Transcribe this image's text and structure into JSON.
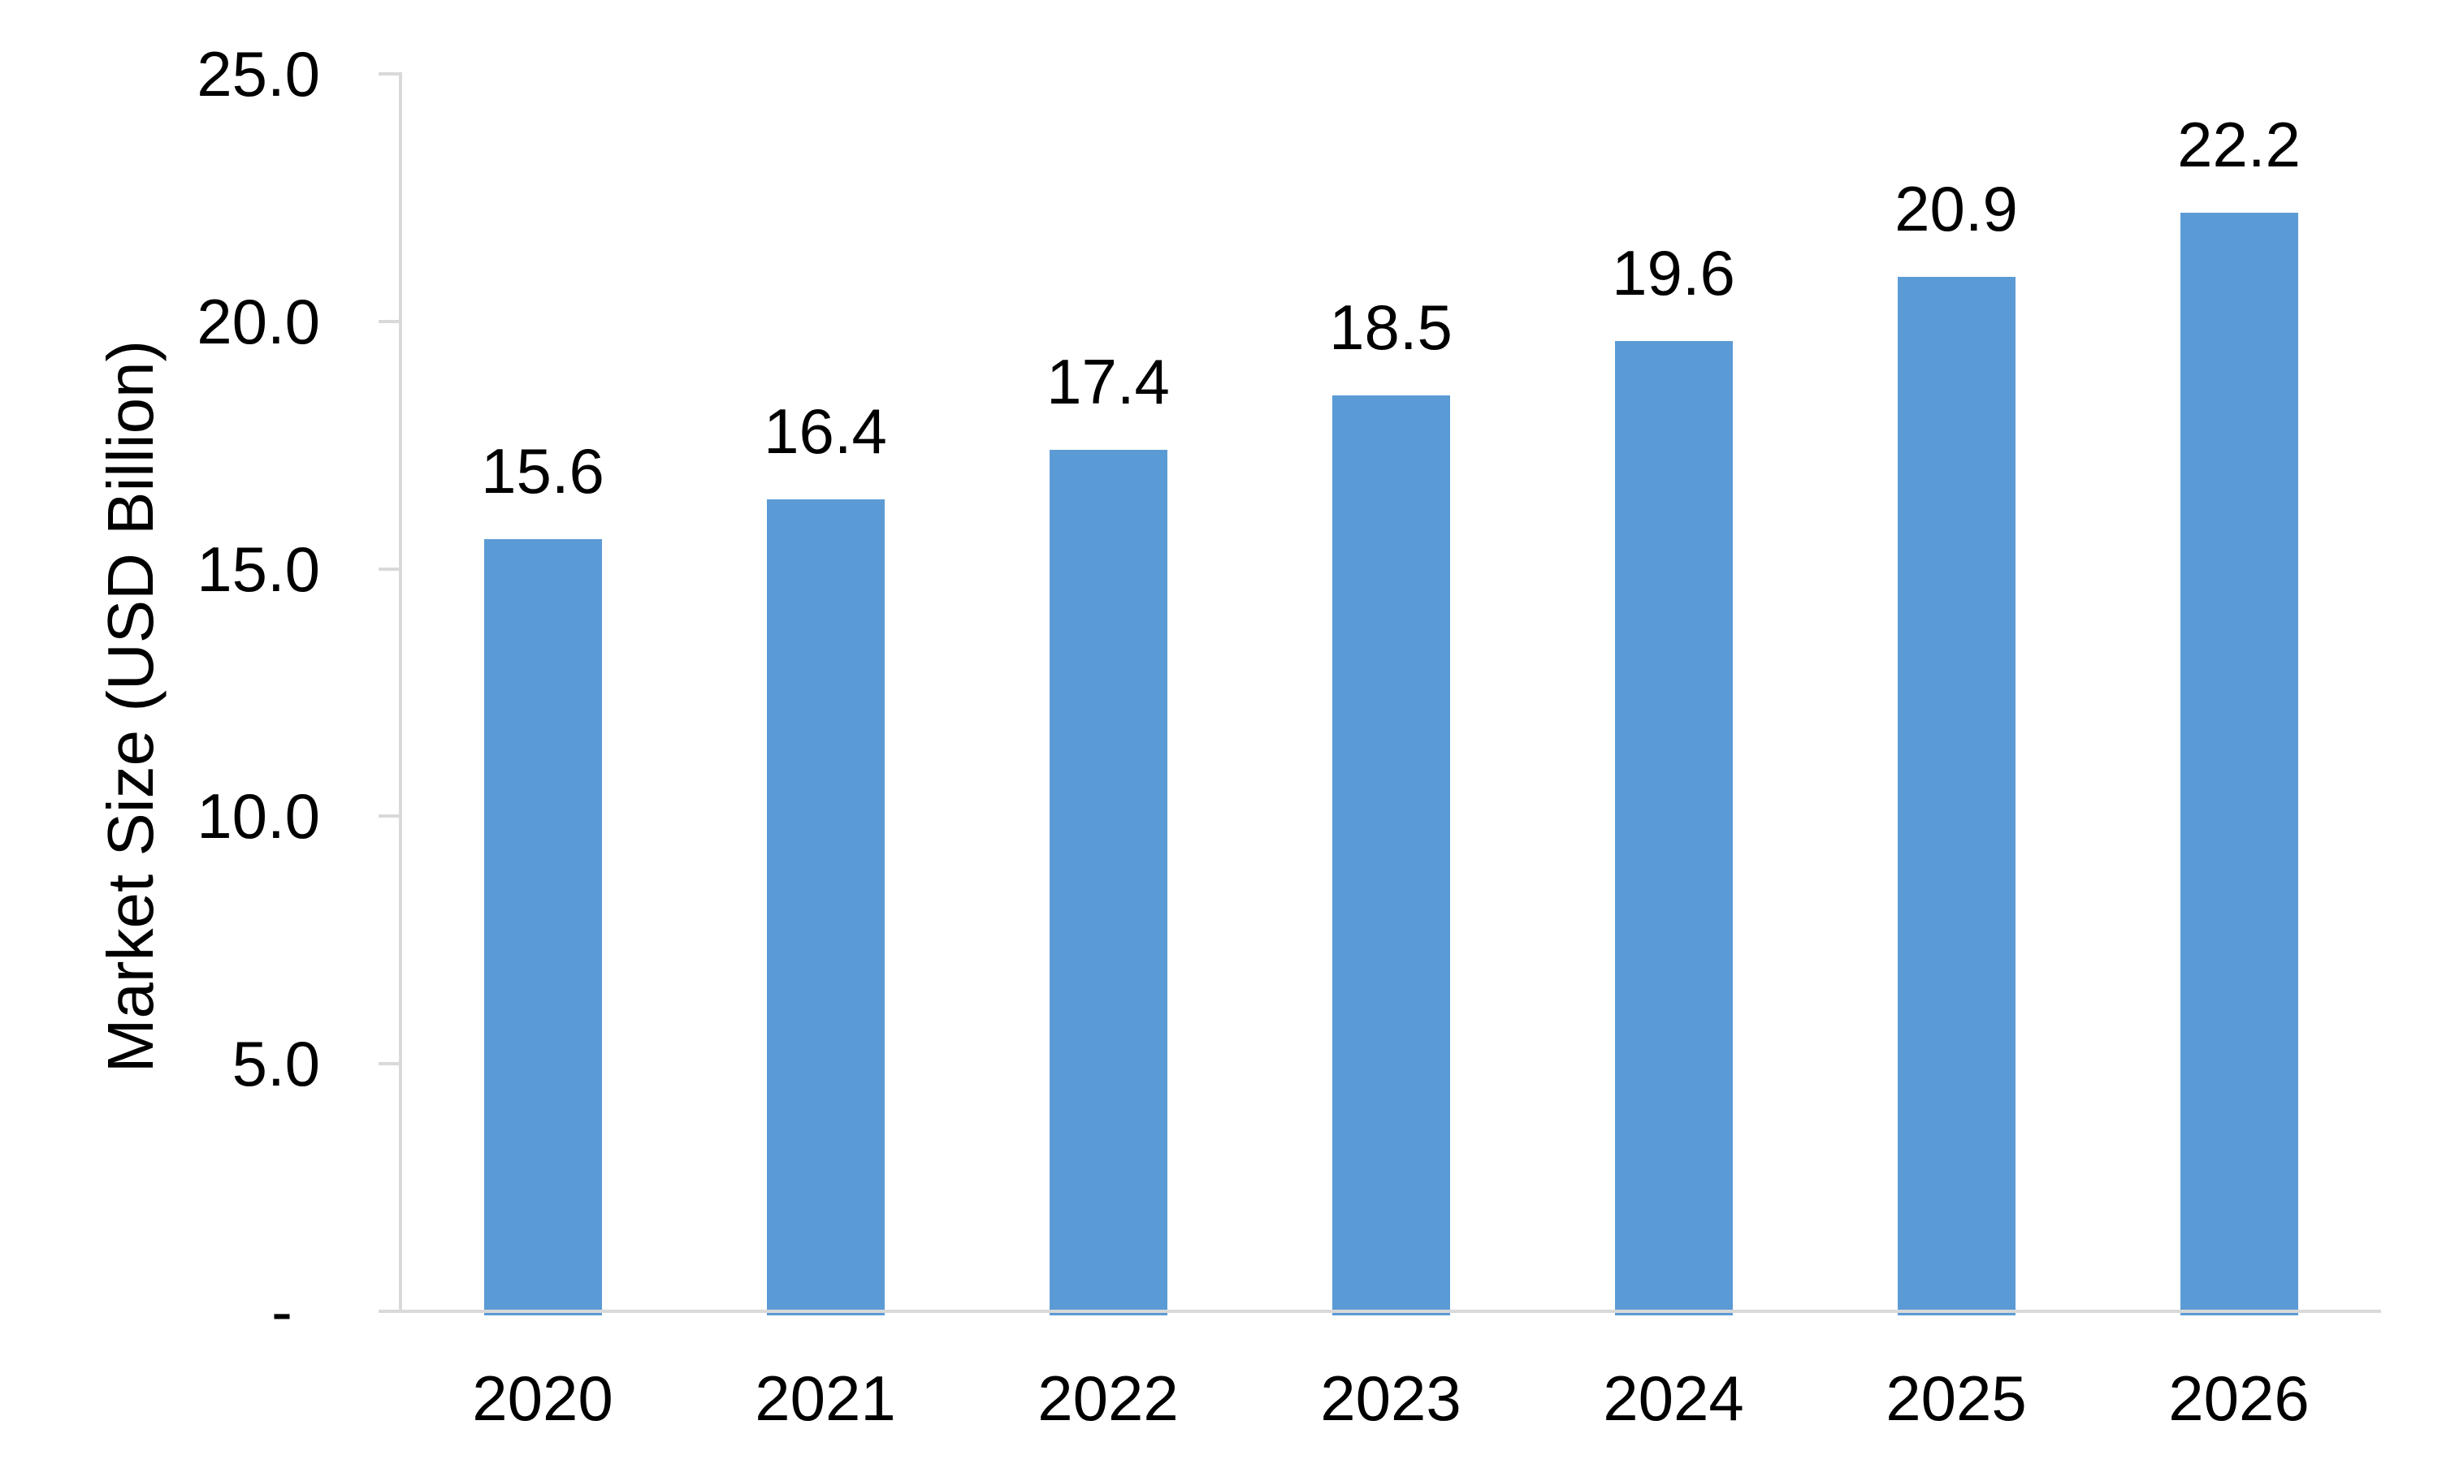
{
  "chart_data": {
    "type": "bar",
    "title": "",
    "ylabel": "Market Size (USD Billion)",
    "xlabel": "",
    "categories": [
      "2020",
      "2021",
      "2022",
      "2023",
      "2024",
      "2025",
      "2026"
    ],
    "values": [
      15.6,
      16.4,
      17.4,
      18.5,
      19.6,
      20.9,
      22.2
    ],
    "value_labels": [
      "15.6",
      "16.4",
      "17.4",
      "18.5",
      "19.6",
      "20.9",
      "22.2"
    ],
    "ylim": [
      0,
      25
    ],
    "y_ticks": [
      0,
      5,
      10,
      15,
      20,
      25
    ],
    "y_tick_labels": [
      "-",
      "5.0",
      "10.0",
      "15.0",
      "20.0",
      "25.0"
    ],
    "grid": "off",
    "legend": "none",
    "bar_color": "#5B9BD5",
    "axis_color": "#D9D9D9",
    "text_color": "#000000",
    "background_color": "#FFFFFF"
  }
}
